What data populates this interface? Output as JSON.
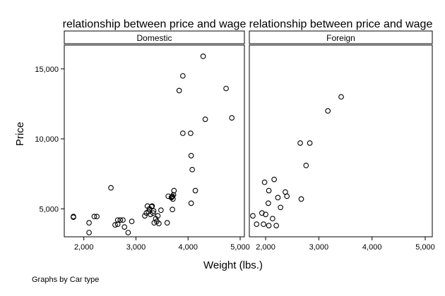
{
  "chart_data": {
    "type": "scatter",
    "panel_title": "relationship between price and wage",
    "xlabel": "Weight (lbs.)",
    "ylabel": "Price",
    "xlim": [
      1760,
      5000
    ],
    "ylim": [
      3000,
      16700
    ],
    "xticks": [
      {
        "value": 2000,
        "label": "2,000"
      },
      {
        "value": 3000,
        "label": "3,000"
      },
      {
        "value": 4000,
        "label": "4,000"
      },
      {
        "value": 5000,
        "label": "5,000"
      }
    ],
    "yticks": [
      {
        "value": 5000,
        "label": "5,000"
      },
      {
        "value": 10000,
        "label": "10,000"
      },
      {
        "value": 15000,
        "label": "15,000"
      }
    ],
    "note": "Graphs by Car type",
    "panels": [
      {
        "name": "Domestic",
        "points": [
          [
            1800,
            4400
          ],
          [
            1800,
            4450
          ],
          [
            2100,
            3300
          ],
          [
            2100,
            4000
          ],
          [
            2200,
            4450
          ],
          [
            2250,
            4450
          ],
          [
            2520,
            6500
          ],
          [
            2600,
            3850
          ],
          [
            2650,
            3900
          ],
          [
            2650,
            4200
          ],
          [
            2700,
            4200
          ],
          [
            2750,
            4200
          ],
          [
            2780,
            3700
          ],
          [
            2850,
            3300
          ],
          [
            2920,
            4100
          ],
          [
            3170,
            4500
          ],
          [
            3200,
            4700
          ],
          [
            3220,
            5200
          ],
          [
            3240,
            4800
          ],
          [
            3260,
            5000
          ],
          [
            3280,
            4600
          ],
          [
            3300,
            5150
          ],
          [
            3310,
            5200
          ],
          [
            3330,
            4700
          ],
          [
            3340,
            4850
          ],
          [
            3350,
            4000
          ],
          [
            3380,
            4300
          ],
          [
            3400,
            4100
          ],
          [
            3420,
            4500
          ],
          [
            3440,
            3950
          ],
          [
            3480,
            4900
          ],
          [
            3600,
            4000
          ],
          [
            3620,
            5900
          ],
          [
            3680,
            5800
          ],
          [
            3690,
            5850
          ],
          [
            3700,
            5900
          ],
          [
            3710,
            5700
          ],
          [
            3720,
            6000
          ],
          [
            3730,
            6300
          ],
          [
            3700,
            4950
          ],
          [
            3830,
            13450
          ],
          [
            3900,
            14500
          ],
          [
            3900,
            10400
          ],
          [
            4050,
            10400
          ],
          [
            4060,
            8800
          ],
          [
            4080,
            7800
          ],
          [
            4060,
            5400
          ],
          [
            4140,
            6300
          ],
          [
            4290,
            15900
          ],
          [
            4330,
            11400
          ],
          [
            4730,
            13600
          ],
          [
            4840,
            11500
          ]
        ]
      },
      {
        "name": "Foreign",
        "points": [
          [
            1760,
            4500
          ],
          [
            1830,
            3900
          ],
          [
            1930,
            4700
          ],
          [
            1960,
            3900
          ],
          [
            1980,
            6900
          ],
          [
            2000,
            4600
          ],
          [
            2050,
            5400
          ],
          [
            2060,
            6300
          ],
          [
            2060,
            3800
          ],
          [
            2130,
            4300
          ],
          [
            2160,
            7100
          ],
          [
            2200,
            3800
          ],
          [
            2230,
            5800
          ],
          [
            2280,
            5100
          ],
          [
            2370,
            6200
          ],
          [
            2400,
            5900
          ],
          [
            2650,
            9700
          ],
          [
            2670,
            5700
          ],
          [
            2760,
            8100
          ],
          [
            2830,
            9700
          ],
          [
            3170,
            12000
          ],
          [
            3420,
            13000
          ]
        ]
      }
    ]
  }
}
